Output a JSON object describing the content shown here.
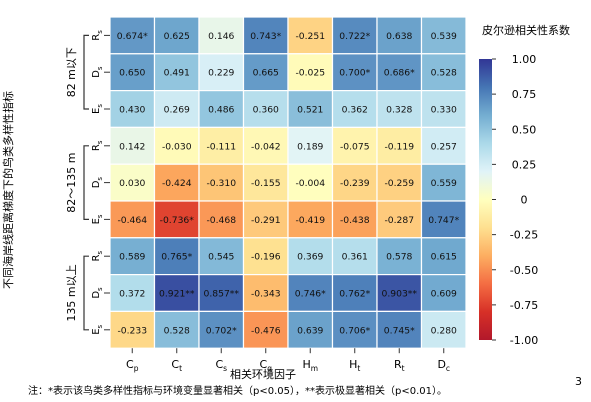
{
  "chart_data": {
    "type": "heatmap",
    "xlabel": "相关环境因子",
    "ylabel": "不同海岸线距离梯度下的鸟类多样性指标",
    "x_ticks": [
      {
        "base": "C",
        "sub": "p"
      },
      {
        "base": "C",
        "sub": "t"
      },
      {
        "base": "C",
        "sub": "s"
      },
      {
        "base": "C",
        "sub": "g"
      },
      {
        "base": "H",
        "sub": "m"
      },
      {
        "base": "H",
        "sub": "t"
      },
      {
        "base": "R",
        "sub": "t"
      },
      {
        "base": "D",
        "sub": "c"
      }
    ],
    "groups": [
      {
        "label": "82 m以下",
        "rows": [
          {
            "base": "R",
            "sub": "s"
          },
          {
            "base": "D",
            "sub": "s"
          },
          {
            "base": "E",
            "sub": "s"
          }
        ]
      },
      {
        "label": "82～135 m",
        "rows": [
          {
            "base": "R",
            "sub": "s"
          },
          {
            "base": "D",
            "sub": "s"
          },
          {
            "base": "E",
            "sub": "s"
          }
        ]
      },
      {
        "label": "135 m以上",
        "rows": [
          {
            "base": "R",
            "sub": "s"
          },
          {
            "base": "D",
            "sub": "s"
          },
          {
            "base": "E",
            "sub": "s"
          }
        ]
      }
    ],
    "values": [
      [
        0.674,
        0.625,
        0.146,
        0.743,
        -0.251,
        0.722,
        0.638,
        0.539
      ],
      [
        0.65,
        0.491,
        0.229,
        0.665,
        -0.025,
        0.7,
        0.686,
        0.528
      ],
      [
        0.43,
        0.269,
        0.486,
        0.36,
        0.521,
        0.362,
        0.328,
        0.33
      ],
      [
        0.142,
        -0.03,
        -0.111,
        -0.042,
        0.189,
        -0.075,
        -0.119,
        0.257
      ],
      [
        0.03,
        -0.424,
        -0.31,
        -0.155,
        -0.004,
        -0.239,
        -0.259,
        0.559
      ],
      [
        -0.464,
        -0.736,
        -0.468,
        -0.291,
        -0.419,
        -0.438,
        -0.287,
        0.747
      ],
      [
        0.589,
        0.765,
        0.545,
        -0.196,
        0.369,
        0.361,
        0.578,
        0.615
      ],
      [
        0.372,
        0.921,
        0.857,
        -0.343,
        0.746,
        0.762,
        0.903,
        0.609
      ],
      [
        -0.233,
        0.528,
        0.702,
        -0.476,
        0.639,
        0.706,
        0.745,
        0.28
      ]
    ],
    "cell_labels": [
      [
        "0.674*",
        "0.625",
        "0.146",
        "0.743*",
        "-0.251",
        "0.722*",
        "0.638",
        "0.539"
      ],
      [
        "0.650",
        "0.491",
        "0.229",
        "0.665",
        "-0.025",
        "0.700*",
        "0.686*",
        "0.528"
      ],
      [
        "0.430",
        "0.269",
        "0.486",
        "0.360",
        "0.521",
        "0.362",
        "0.328",
        "0.330"
      ],
      [
        "0.142",
        "-0.030",
        "-0.111",
        "-0.042",
        "0.189",
        "-0.075",
        "-0.119",
        "0.257"
      ],
      [
        "0.030",
        "-0.424",
        "-0.310",
        "-0.155",
        "-0.004",
        "-0.239",
        "-0.259",
        "0.559"
      ],
      [
        "-0.464",
        "-0.736*",
        "-0.468",
        "-0.291",
        "-0.419",
        "-0.438",
        "-0.287",
        "0.747*"
      ],
      [
        "0.589",
        "0.765*",
        "0.545",
        "-0.196",
        "0.369",
        "0.361",
        "0.578",
        "0.615"
      ],
      [
        "0.372",
        "0.921**",
        "0.857**",
        "-0.343",
        "0.746*",
        "0.762*",
        "0.903**",
        "0.609"
      ],
      [
        "-0.233",
        "0.528",
        "0.702*",
        "-0.476",
        "0.639",
        "0.706*",
        "0.745*",
        "0.280"
      ]
    ],
    "colorbar": {
      "title": "皮尔逊相关性系数",
      "range": [
        -1,
        1
      ],
      "ticks": [
        "1.00",
        "0.75",
        "0.50",
        "0.25",
        "0",
        "-0.25",
        "-0.50",
        "-0.75",
        "-1.00"
      ],
      "colors": [
        "#b2182b",
        "#d73027",
        "#f46d43",
        "#fdae61",
        "#fee090",
        "#ffffbf",
        "#e0f3f8",
        "#abd9e9",
        "#74add1",
        "#4575b4",
        "#313695"
      ]
    },
    "note": "注：*表示该鸟类多样性指标与环境变量显著相关（p<0.05），**表示极显著相关（p<0.01）。",
    "page_mark": "3"
  }
}
